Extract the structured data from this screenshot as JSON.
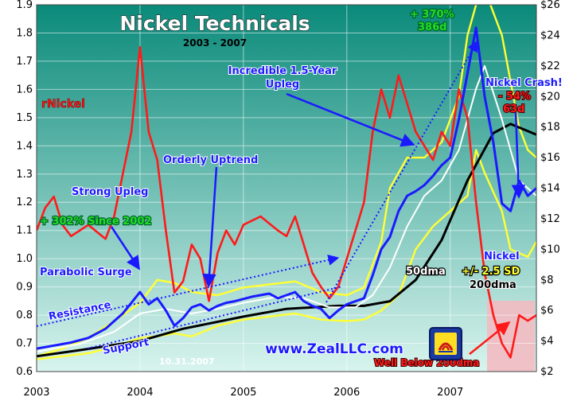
{
  "chart_data": {
    "type": "line",
    "title": "Nickel Technicals",
    "subtitle": "2003 - 2007",
    "x_ticks": [
      "2003",
      "2004",
      "2005",
      "2006",
      "2007"
    ],
    "x_range": [
      "2003-01",
      "2007-11"
    ],
    "y_left": {
      "ticks": [
        "0.6",
        "0.7",
        "0.8",
        "0.9",
        "1.0",
        "1.1",
        "1.2",
        "1.3",
        "1.4",
        "1.5",
        "1.6",
        "1.7",
        "1.8",
        "1.9"
      ],
      "range": [
        0.6,
        1.9
      ]
    },
    "y_right": {
      "ticks": [
        "$2",
        "$4",
        "$6",
        "$8",
        "$10",
        "$12",
        "$14",
        "$16",
        "$18",
        "$20",
        "$22",
        "$24",
        "$26"
      ],
      "range": [
        2,
        26
      ]
    },
    "series": [
      {
        "name": "rNickel",
        "axis": "left",
        "color": "#ff1a1a",
        "points": [
          [
            "2003-01",
            1.1
          ],
          [
            "2003-02",
            1.18
          ],
          [
            "2003-03",
            1.22
          ],
          [
            "2003-04",
            1.12
          ],
          [
            "2003-05",
            1.08
          ],
          [
            "2003-07",
            1.12
          ],
          [
            "2003-09",
            1.07
          ],
          [
            "2003-10",
            1.15
          ],
          [
            "2003-11",
            1.3
          ],
          [
            "2003-12",
            1.45
          ],
          [
            "2004-01",
            1.75
          ],
          [
            "2004-02",
            1.45
          ],
          [
            "2004-03",
            1.35
          ],
          [
            "2004-04",
            1.1
          ],
          [
            "2004-05",
            0.88
          ],
          [
            "2004-06",
            0.92
          ],
          [
            "2004-07",
            1.05
          ],
          [
            "2004-08",
            1.0
          ],
          [
            "2004-09",
            0.85
          ],
          [
            "2004-10",
            1.02
          ],
          [
            "2004-11",
            1.1
          ],
          [
            "2004-12",
            1.05
          ],
          [
            "2005-01",
            1.12
          ],
          [
            "2005-03",
            1.15
          ],
          [
            "2005-05",
            1.1
          ],
          [
            "2005-06",
            1.08
          ],
          [
            "2005-07",
            1.15
          ],
          [
            "2005-08",
            1.05
          ],
          [
            "2005-09",
            0.95
          ],
          [
            "2005-10",
            0.9
          ],
          [
            "2005-11",
            0.86
          ],
          [
            "2005-12",
            0.9
          ],
          [
            "2006-01",
            1.0
          ],
          [
            "2006-02",
            1.1
          ],
          [
            "2006-03",
            1.2
          ],
          [
            "2006-04",
            1.45
          ],
          [
            "2006-05",
            1.6
          ],
          [
            "2006-06",
            1.5
          ],
          [
            "2006-07",
            1.65
          ],
          [
            "2006-08",
            1.55
          ],
          [
            "2006-09",
            1.45
          ],
          [
            "2006-10",
            1.4
          ],
          [
            "2006-11",
            1.35
          ],
          [
            "2006-12",
            1.45
          ],
          [
            "2007-01",
            1.4
          ],
          [
            "2007-02",
            1.6
          ],
          [
            "2007-03",
            1.5
          ],
          [
            "2007-04",
            1.2
          ],
          [
            "2007-05",
            0.95
          ],
          [
            "2007-06",
            0.8
          ],
          [
            "2007-07",
            0.7
          ],
          [
            "2007-08",
            0.65
          ],
          [
            "2007-09",
            0.8
          ],
          [
            "2007-10",
            0.78
          ],
          [
            "2007-11",
            0.8
          ]
        ]
      },
      {
        "name": "Nickel",
        "axis": "right",
        "color": "#1a1aff",
        "points": [
          [
            "2003-01",
            3.5
          ],
          [
            "2003-03",
            3.7
          ],
          [
            "2003-05",
            3.9
          ],
          [
            "2003-07",
            4.2
          ],
          [
            "2003-09",
            4.8
          ],
          [
            "2003-10",
            5.3
          ],
          [
            "2003-11",
            5.8
          ],
          [
            "2003-12",
            6.5
          ],
          [
            "2004-01",
            7.2
          ],
          [
            "2004-02",
            6.4
          ],
          [
            "2004-03",
            6.8
          ],
          [
            "2004-04",
            6.0
          ],
          [
            "2004-05",
            5.0
          ],
          [
            "2004-06",
            5.5
          ],
          [
            "2004-07",
            6.2
          ],
          [
            "2004-08",
            6.4
          ],
          [
            "2004-09",
            6.0
          ],
          [
            "2004-10",
            6.3
          ],
          [
            "2004-11",
            6.5
          ],
          [
            "2004-12",
            6.6
          ],
          [
            "2005-02",
            6.9
          ],
          [
            "2005-04",
            7.1
          ],
          [
            "2005-05",
            6.8
          ],
          [
            "2005-06",
            7.0
          ],
          [
            "2005-07",
            7.2
          ],
          [
            "2005-08",
            6.6
          ],
          [
            "2005-09",
            6.3
          ],
          [
            "2005-10",
            6.1
          ],
          [
            "2005-11",
            5.5
          ],
          [
            "2005-12",
            6.0
          ],
          [
            "2006-01",
            6.4
          ],
          [
            "2006-02",
            6.6
          ],
          [
            "2006-03",
            6.8
          ],
          [
            "2006-04",
            8.3
          ],
          [
            "2006-05",
            10.0
          ],
          [
            "2006-06",
            10.8
          ],
          [
            "2006-07",
            12.5
          ],
          [
            "2006-08",
            13.5
          ],
          [
            "2006-09",
            13.8
          ],
          [
            "2006-10",
            14.2
          ],
          [
            "2006-11",
            14.8
          ],
          [
            "2006-12",
            15.5
          ],
          [
            "2007-01",
            16.0
          ],
          [
            "2007-02",
            18.5
          ],
          [
            "2007-03",
            21.5
          ],
          [
            "2007-04",
            24.5
          ],
          [
            "2007-05",
            20.0
          ],
          [
            "2007-06",
            17.0
          ],
          [
            "2007-07",
            13.0
          ],
          [
            "2007-08",
            12.5
          ],
          [
            "2007-09",
            14.5
          ],
          [
            "2007-10",
            13.5
          ],
          [
            "2007-11",
            14.0
          ]
        ]
      },
      {
        "name": "50dma",
        "axis": "right",
        "color": "#ffffff",
        "points": [
          [
            "2003-01",
            3.3
          ],
          [
            "2003-06",
            3.8
          ],
          [
            "2003-10",
            4.6
          ],
          [
            "2004-01",
            5.8
          ],
          [
            "2004-04",
            6.1
          ],
          [
            "2004-07",
            5.8
          ],
          [
            "2004-10",
            6.1
          ],
          [
            "2005-01",
            6.5
          ],
          [
            "2005-05",
            6.9
          ],
          [
            "2005-08",
            6.8
          ],
          [
            "2005-11",
            6.2
          ],
          [
            "2006-02",
            6.2
          ],
          [
            "2006-04",
            7.0
          ],
          [
            "2006-06",
            8.8
          ],
          [
            "2006-08",
            11.5
          ],
          [
            "2006-10",
            13.5
          ],
          [
            "2006-12",
            14.5
          ],
          [
            "2007-02",
            16.5
          ],
          [
            "2007-04",
            20.5
          ],
          [
            "2007-05",
            22.0
          ],
          [
            "2007-07",
            18.5
          ],
          [
            "2007-09",
            14.5
          ],
          [
            "2007-11",
            13.5
          ]
        ]
      },
      {
        "name": "200dma",
        "axis": "right",
        "color": "#000000",
        "points": [
          [
            "2003-01",
            3.0
          ],
          [
            "2003-06",
            3.4
          ],
          [
            "2004-01",
            4.0
          ],
          [
            "2004-06",
            4.8
          ],
          [
            "2005-01",
            5.6
          ],
          [
            "2005-06",
            6.1
          ],
          [
            "2005-12",
            6.3
          ],
          [
            "2006-03",
            6.3
          ],
          [
            "2006-06",
            6.6
          ],
          [
            "2006-09",
            8.0
          ],
          [
            "2006-12",
            10.6
          ],
          [
            "2007-03",
            14.5
          ],
          [
            "2007-06",
            17.6
          ],
          [
            "2007-08",
            18.2
          ],
          [
            "2007-11",
            17.5
          ]
        ]
      },
      {
        "name": "+2.5 SD",
        "axis": "right",
        "color": "#ffff33",
        "points": [
          [
            "2003-01",
            3.0
          ],
          [
            "2003-04",
            3.5
          ],
          [
            "2003-07",
            4.2
          ],
          [
            "2003-10",
            5.3
          ],
          [
            "2004-01",
            6.5
          ],
          [
            "2004-03",
            8.0
          ],
          [
            "2004-05",
            7.8
          ],
          [
            "2004-07",
            7.2
          ],
          [
            "2004-10",
            7.0
          ],
          [
            "2005-01",
            7.5
          ],
          [
            "2005-04",
            7.7
          ],
          [
            "2005-07",
            7.9
          ],
          [
            "2005-10",
            7.2
          ],
          [
            "2006-01",
            7.0
          ],
          [
            "2006-03",
            7.5
          ],
          [
            "2006-05",
            10.5
          ],
          [
            "2006-06",
            14.0
          ],
          [
            "2006-08",
            16.0
          ],
          [
            "2006-10",
            16.0
          ],
          [
            "2006-12",
            17.0
          ],
          [
            "2007-02",
            20.0
          ],
          [
            "2007-03",
            24.0
          ],
          [
            "2007-04",
            26.0
          ],
          [
            "2007-05",
            27.0
          ],
          [
            "2007-07",
            24.0
          ],
          [
            "2007-09",
            18.0
          ],
          [
            "2007-10",
            16.5
          ],
          [
            "2007-11",
            16.0
          ]
        ]
      },
      {
        "name": "-2.5 SD",
        "axis": "right",
        "color": "#ffff33",
        "points": [
          [
            "2003-01",
            2.8
          ],
          [
            "2003-04",
            3.0
          ],
          [
            "2003-07",
            3.2
          ],
          [
            "2003-10",
            3.6
          ],
          [
            "2004-01",
            4.2
          ],
          [
            "2004-03",
            4.3
          ],
          [
            "2004-05",
            4.5
          ],
          [
            "2004-07",
            4.3
          ],
          [
            "2004-10",
            5.0
          ],
          [
            "2005-01",
            5.4
          ],
          [
            "2005-04",
            5.6
          ],
          [
            "2005-07",
            5.8
          ],
          [
            "2005-10",
            5.4
          ],
          [
            "2006-01",
            5.3
          ],
          [
            "2006-03",
            5.4
          ],
          [
            "2006-05",
            6.0
          ],
          [
            "2006-07",
            7.0
          ],
          [
            "2006-09",
            10.0
          ],
          [
            "2006-11",
            11.5
          ],
          [
            "2007-01",
            12.5
          ],
          [
            "2007-03",
            13.5
          ],
          [
            "2007-04",
            16.5
          ],
          [
            "2007-05",
            15.0
          ],
          [
            "2007-07",
            12.5
          ],
          [
            "2007-08",
            10.0
          ],
          [
            "2007-10",
            9.5
          ],
          [
            "2007-11",
            10.5
          ]
        ]
      }
    ],
    "annotations": {
      "rnickel": "rNickel",
      "strong_upleg": "Strong Upleg",
      "since_2002": "+ 302% Since 2002",
      "orderly": "Orderly Uptrend",
      "incredible1": "Incredible 1.5-Year",
      "incredible2": "Upleg",
      "plus370": "+ 370%",
      "d386": "386d",
      "crash": "Nickel Crash!",
      "minus54": "- 54%",
      "d63": "63d",
      "parabolic": "Parabolic Surge",
      "resistance": "Resistance",
      "support": "Support",
      "nickel_lbl": "Nickel",
      "dma50": "50dma",
      "sd": "+/- 2.5 SD",
      "dma200": "200dma",
      "below": "Well Below 200dma",
      "date": "10.31.2007",
      "url": "www.ZealLLC.com"
    },
    "grid": true,
    "legend": "none"
  },
  "colors": {
    "plot_bg_top": "#0a8a7a",
    "plot_bg_bottom": "#d8f4ee",
    "annotation_blue": "#1a1aff",
    "annotation_red": "#ff1a1a",
    "annotation_green": "#22dd22",
    "highlight_zone": "#f4b8c0"
  }
}
